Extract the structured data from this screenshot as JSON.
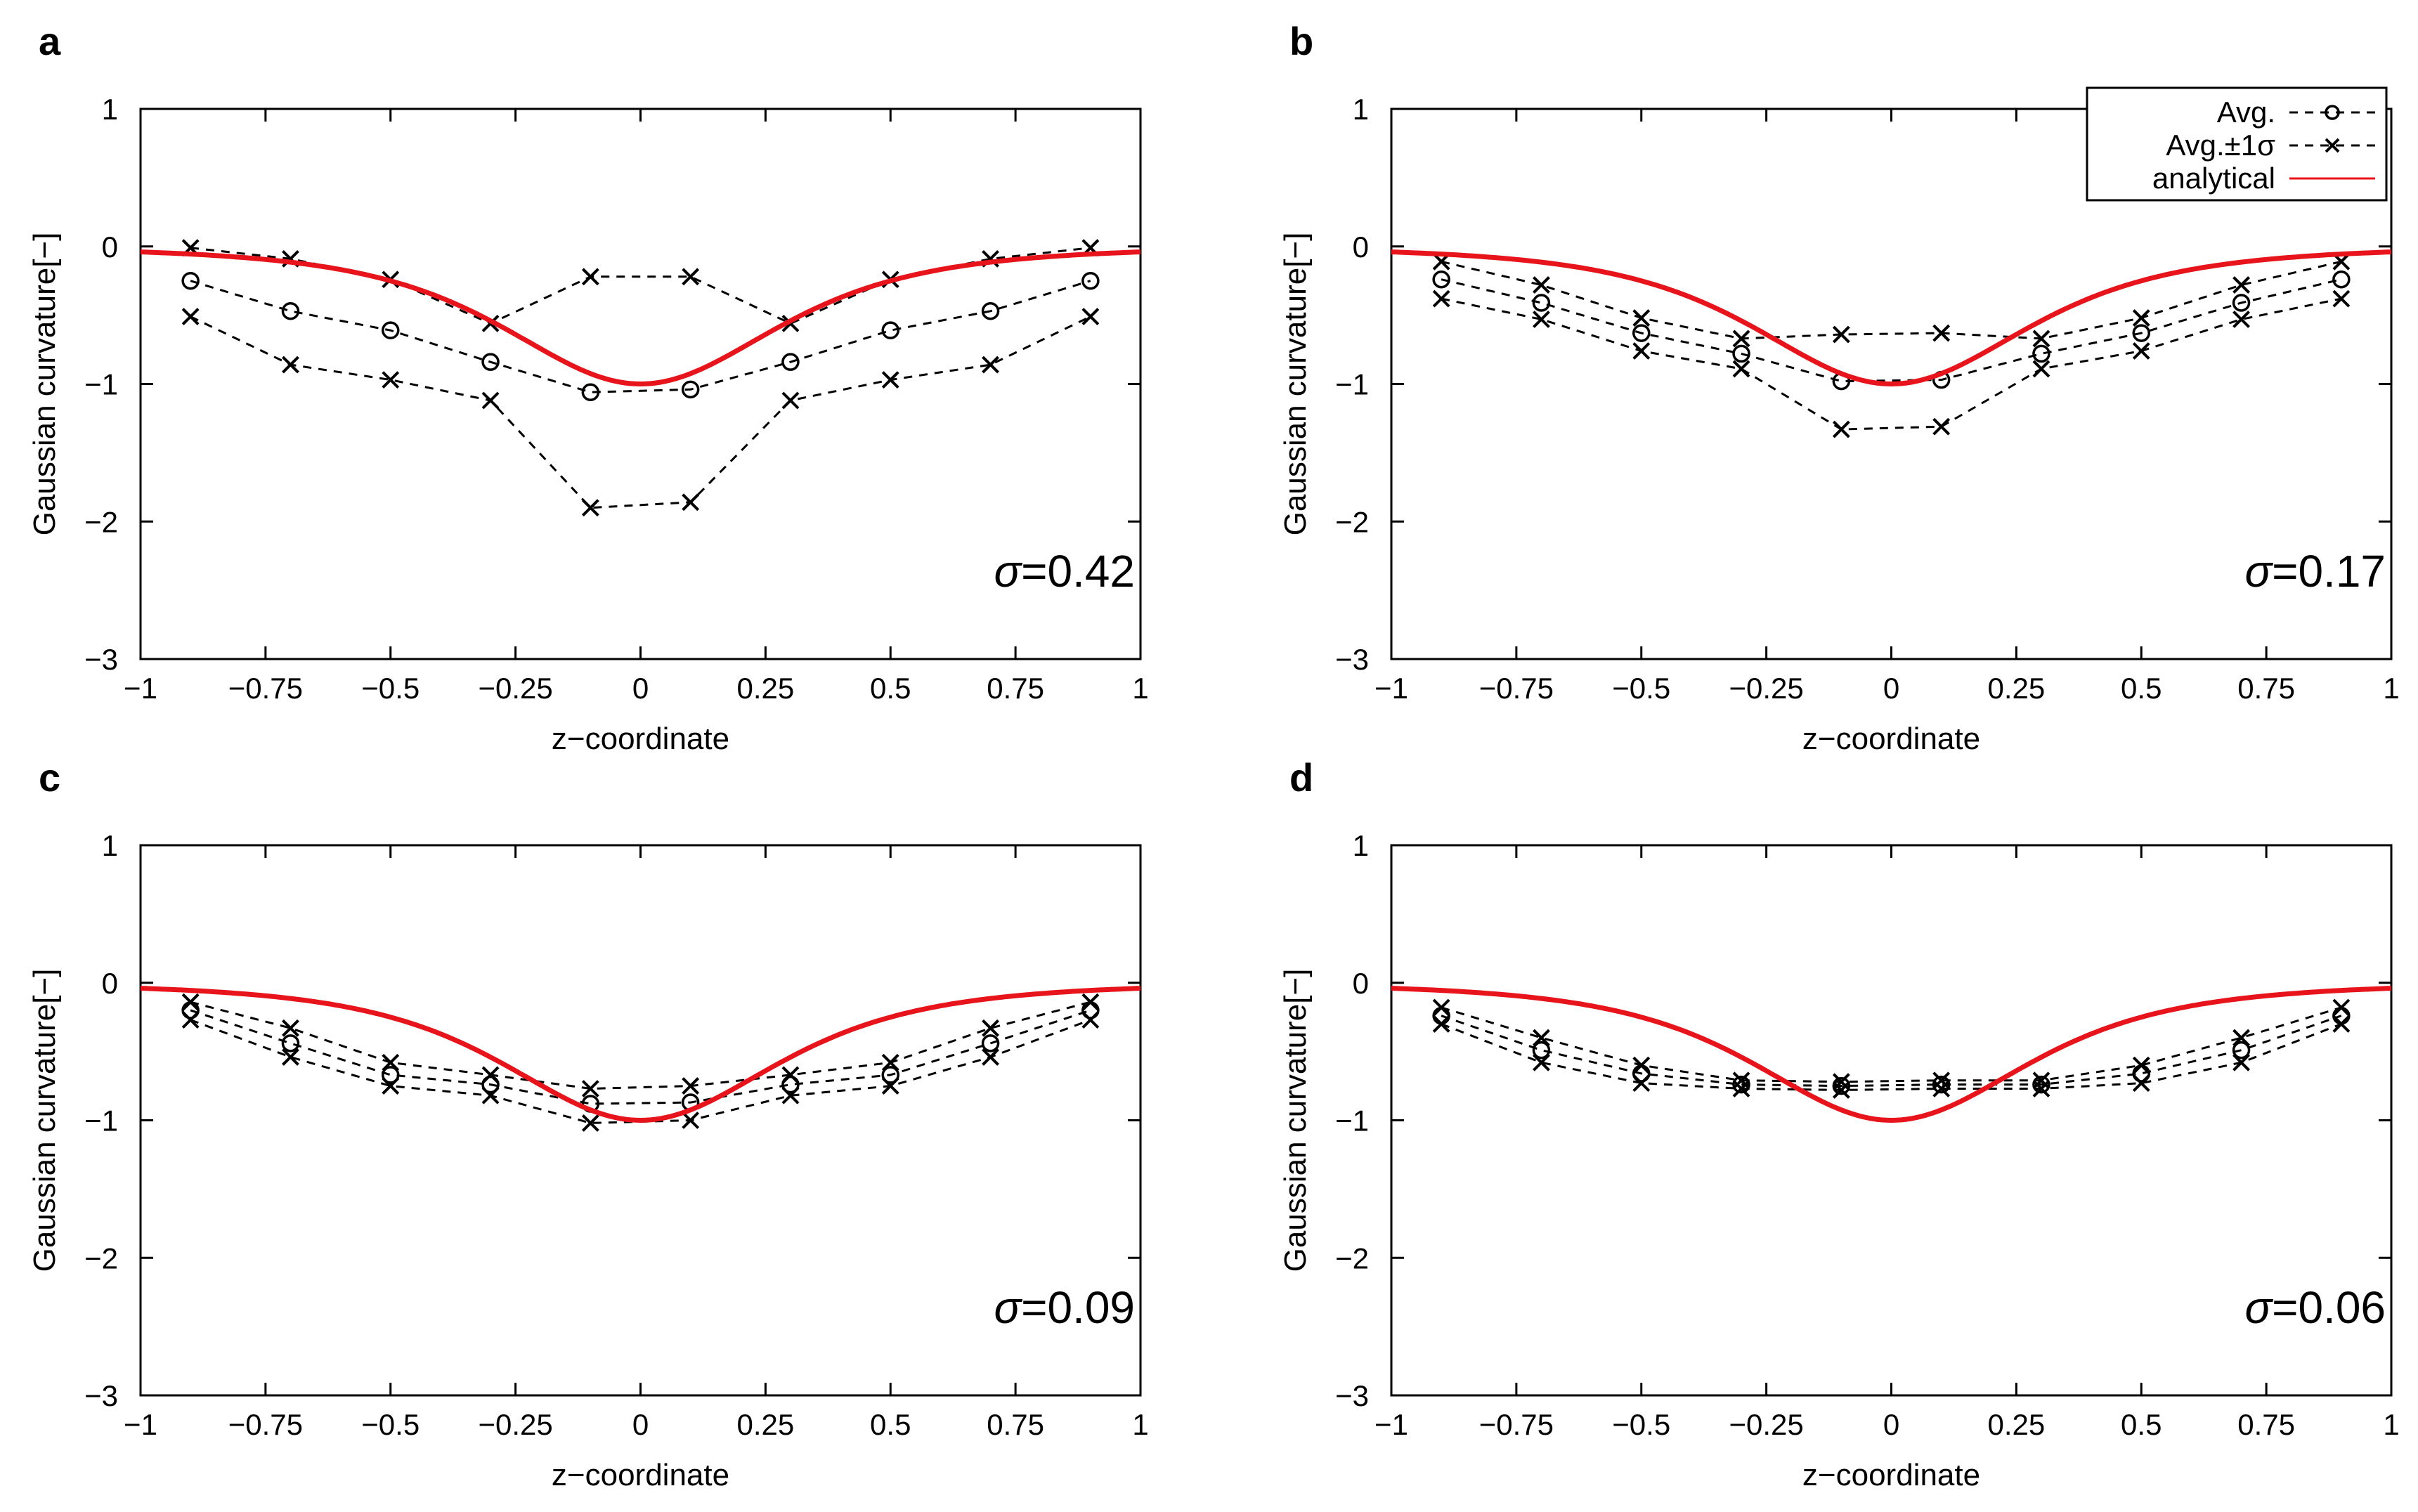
{
  "chart_data": [
    {
      "panel": "a",
      "type": "line",
      "annotation": "=0.42",
      "sigma_symbol": "σ",
      "xlabel": "z−coordinate",
      "ylabel": "Gaussian curvature[−]",
      "xlim": [
        -1,
        1
      ],
      "ylim": [
        -3,
        1
      ],
      "x_ticks": [
        "−1",
        "−0.75",
        "−0.5",
        "−0.25",
        "0",
        "0.25",
        "0.5",
        "0.75",
        "1"
      ],
      "y_ticks": [
        "1",
        "0",
        "−1",
        "−2",
        "−3"
      ],
      "x": [
        -0.9,
        -0.7,
        -0.5,
        -0.3,
        -0.1,
        0.1,
        0.3,
        0.5,
        0.7,
        0.9
      ],
      "series": [
        {
          "name": "Avg.",
          "values": [
            -0.25,
            -0.47,
            -0.61,
            -0.84,
            -1.06,
            -1.04,
            -0.84,
            -0.61,
            -0.47,
            -0.25
          ]
        },
        {
          "name": "Avg.+1σ",
          "values": [
            -0.01,
            -0.09,
            -0.24,
            -0.56,
            -0.22,
            -0.22,
            -0.56,
            -0.24,
            -0.09,
            -0.01
          ]
        },
        {
          "name": "Avg.−1σ",
          "values": [
            -0.51,
            -0.86,
            -0.97,
            -1.12,
            -1.9,
            -1.86,
            -1.12,
            -0.97,
            -0.86,
            -0.51
          ]
        }
      ]
    },
    {
      "panel": "b",
      "type": "line",
      "annotation": "=0.17",
      "sigma_symbol": "σ",
      "xlabel": "z−coordinate",
      "ylabel": "Gaussian curvature[−]",
      "xlim": [
        -1,
        1
      ],
      "ylim": [
        -3,
        1
      ],
      "x_ticks": [
        "−1",
        "−0.75",
        "−0.5",
        "−0.25",
        "0",
        "0.25",
        "0.5",
        "0.75",
        "1"
      ],
      "y_ticks": [
        "1",
        "0",
        "−1",
        "−2",
        "−3"
      ],
      "x": [
        -0.9,
        -0.7,
        -0.5,
        -0.3,
        -0.1,
        0.1,
        0.3,
        0.5,
        0.7,
        0.9
      ],
      "series": [
        {
          "name": "Avg.",
          "values": [
            -0.24,
            -0.41,
            -0.63,
            -0.78,
            -0.98,
            -0.97,
            -0.78,
            -0.63,
            -0.41,
            -0.24
          ]
        },
        {
          "name": "Avg.+1σ",
          "values": [
            -0.11,
            -0.28,
            -0.52,
            -0.67,
            -0.64,
            -0.63,
            -0.67,
            -0.52,
            -0.28,
            -0.11
          ]
        },
        {
          "name": "Avg.−1σ",
          "values": [
            -0.38,
            -0.53,
            -0.76,
            -0.89,
            -1.33,
            -1.31,
            -0.89,
            -0.76,
            -0.53,
            -0.38
          ]
        }
      ]
    },
    {
      "panel": "c",
      "type": "line",
      "annotation": "=0.09",
      "sigma_symbol": "σ",
      "xlabel": "z−coordinate",
      "ylabel": "Gaussian curvature[−]",
      "xlim": [
        -1,
        1
      ],
      "ylim": [
        -3,
        1
      ],
      "x_ticks": [
        "−1",
        "−0.75",
        "−0.5",
        "−0.25",
        "0",
        "0.25",
        "0.5",
        "0.75",
        "1"
      ],
      "y_ticks": [
        "1",
        "0",
        "−1",
        "−2",
        "−3"
      ],
      "x": [
        -0.9,
        -0.7,
        -0.5,
        -0.3,
        -0.1,
        0.1,
        0.3,
        0.5,
        0.7,
        0.9
      ],
      "series": [
        {
          "name": "Avg.",
          "values": [
            -0.2,
            -0.44,
            -0.67,
            -0.74,
            -0.88,
            -0.87,
            -0.74,
            -0.67,
            -0.44,
            -0.2
          ]
        },
        {
          "name": "Avg.+1σ",
          "values": [
            -0.14,
            -0.33,
            -0.58,
            -0.67,
            -0.77,
            -0.75,
            -0.67,
            -0.58,
            -0.33,
            -0.14
          ]
        },
        {
          "name": "Avg.−1σ",
          "values": [
            -0.27,
            -0.54,
            -0.75,
            -0.82,
            -1.02,
            -1.0,
            -0.82,
            -0.75,
            -0.54,
            -0.27
          ]
        }
      ]
    },
    {
      "panel": "d",
      "type": "line",
      "annotation": "=0.06",
      "sigma_symbol": "σ",
      "xlabel": "z−coordinate",
      "ylabel": "Gaussian curvature[−]",
      "xlim": [
        -1,
        1
      ],
      "ylim": [
        -3,
        1
      ],
      "x_ticks": [
        "−1",
        "−0.75",
        "−0.5",
        "−0.25",
        "0",
        "0.25",
        "0.5",
        "0.75",
        "1"
      ],
      "y_ticks": [
        "1",
        "0",
        "−1",
        "−2",
        "−3"
      ],
      "x": [
        -0.9,
        -0.7,
        -0.5,
        -0.3,
        -0.1,
        0.1,
        0.3,
        0.5,
        0.7,
        0.9
      ],
      "series": [
        {
          "name": "Avg.",
          "values": [
            -0.24,
            -0.49,
            -0.66,
            -0.74,
            -0.75,
            -0.74,
            -0.74,
            -0.66,
            -0.49,
            -0.24
          ]
        },
        {
          "name": "Avg.+1σ",
          "values": [
            -0.18,
            -0.4,
            -0.6,
            -0.71,
            -0.72,
            -0.71,
            -0.71,
            -0.6,
            -0.4,
            -0.18
          ]
        },
        {
          "name": "Avg.−1σ",
          "values": [
            -0.3,
            -0.58,
            -0.73,
            -0.77,
            -0.78,
            -0.77,
            -0.77,
            -0.73,
            -0.58,
            -0.3
          ]
        }
      ]
    }
  ],
  "legend": {
    "items": [
      {
        "label": "Avg.",
        "marker": "circle"
      },
      {
        "label": "Avg.±1σ",
        "marker": "cross"
      },
      {
        "label": "analytical",
        "marker": "line"
      }
    ]
  },
  "analytical": {
    "name": "analytical",
    "formula": "K(z) = -1 / (1 + 4 z^2)^2",
    "color": "#e8141b"
  },
  "colors": {
    "markers": "#000000",
    "analytical": "#e8141b"
  }
}
